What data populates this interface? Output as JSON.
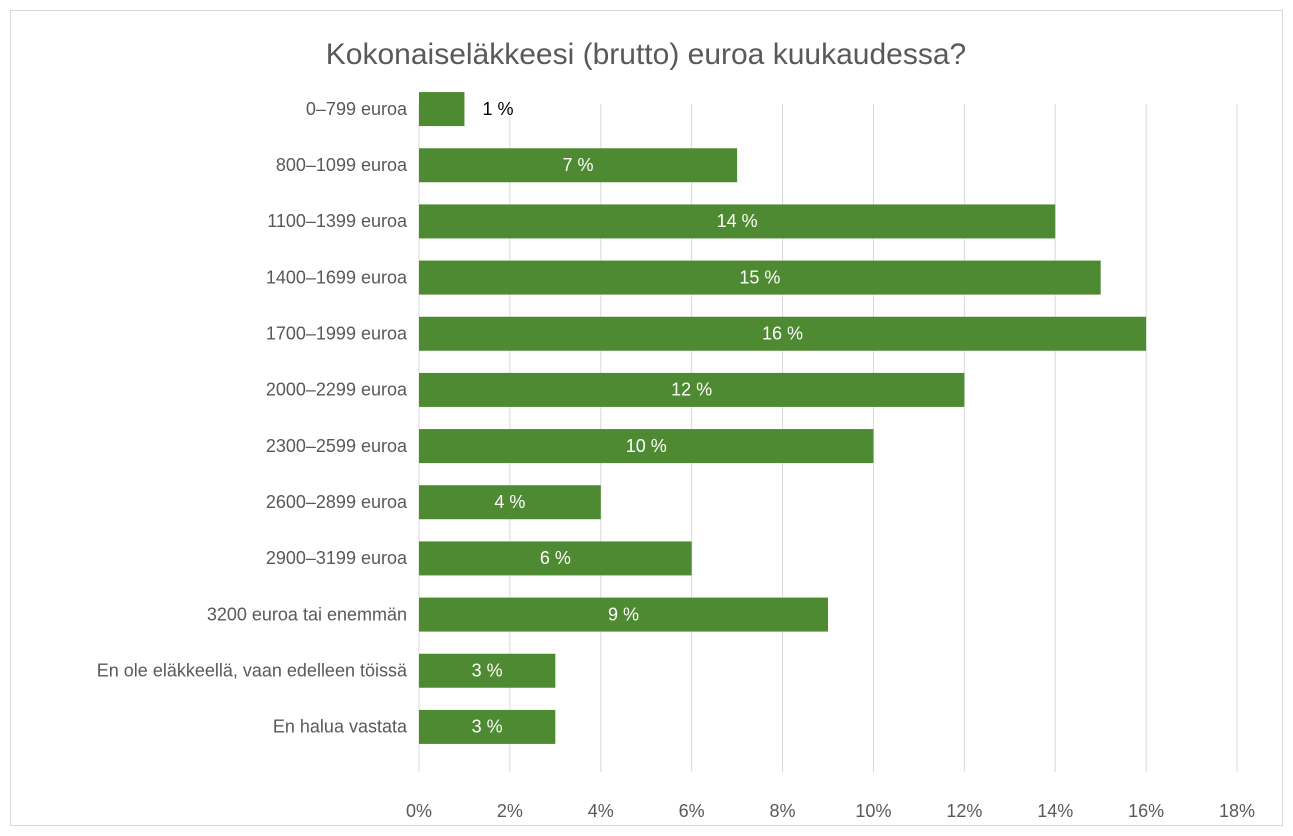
{
  "chart_data": {
    "type": "bar",
    "orientation": "horizontal",
    "title": "Kokonaiseläkkeesi (brutto) euroa kuukaudessa?",
    "categories": [
      "0–799 euroa",
      "800–1099 euroa",
      "1100–1399 euroa",
      "1400–1699 euroa",
      "1700–1999 euroa",
      "2000–2299 euroa",
      "2300–2599 euroa",
      "2600–2899 euroa",
      "2900–3199 euroa",
      "3200 euroa tai enemmän",
      "En ole eläkkeellä, vaan edelleen töissä",
      "En halua vastata"
    ],
    "values": [
      1,
      7,
      14,
      15,
      16,
      12,
      10,
      4,
      6,
      9,
      3,
      3
    ],
    "value_labels": [
      "1 %",
      "7 %",
      "14 %",
      "15 %",
      "16 %",
      "12 %",
      "10 %",
      "4 %",
      "6 %",
      "9 %",
      "3 %",
      "3 %"
    ],
    "color": "#4e8a31",
    "xlim": [
      0,
      18
    ],
    "xticks": [
      {
        "value": 0,
        "label": "0%"
      },
      {
        "value": 2,
        "label": "2%"
      },
      {
        "value": 4,
        "label": "4%"
      },
      {
        "value": 6,
        "label": "6%"
      },
      {
        "value": 8,
        "label": "8%"
      },
      {
        "value": 10,
        "label": "10%"
      },
      {
        "value": 12,
        "label": "12%"
      },
      {
        "value": 14,
        "label": "14%"
      },
      {
        "value": 16,
        "label": "16%"
      },
      {
        "value": 18,
        "label": "18%"
      }
    ],
    "grid": true
  }
}
